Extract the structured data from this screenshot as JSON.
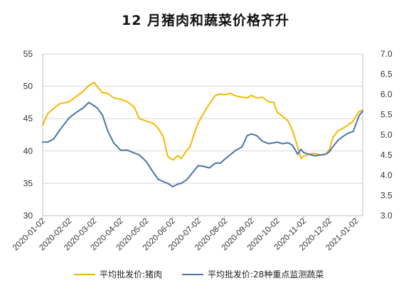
{
  "title": "12 月猪肉和蔬菜价格齐升",
  "chart_data": {
    "type": "line",
    "left_axis": {
      "min": 30,
      "max": 55,
      "ticks": [
        "30",
        "35",
        "40",
        "45",
        "50",
        "55"
      ]
    },
    "right_axis": {
      "min": 3.0,
      "max": 7.0,
      "ticks": [
        "3.0",
        "3.5",
        "4.0",
        "4.5",
        "5.0",
        "5.5",
        "6.0",
        "6.5",
        "7.0"
      ]
    },
    "x_ticks": [
      "2020-01-02",
      "2020-02-02",
      "2020-03-02",
      "2020-04-02",
      "2020-05-02",
      "2020-06-02",
      "2020-07-02",
      "2020-08-02",
      "2020-09-02",
      "2020-10-02",
      "2020-11-02",
      "2020-12-02",
      "2021-01-02"
    ],
    "x_range": [
      "2020-01-02",
      "2021-01-10"
    ],
    "grid": "horizontal",
    "legend_position": "bottom",
    "series": [
      {
        "name": "平均批发价:猪肉",
        "axis": "left",
        "color": "#F5B800",
        "points": [
          [
            "2020-01-02",
            44.0
          ],
          [
            "2020-01-08",
            45.8
          ],
          [
            "2020-01-15",
            46.6
          ],
          [
            "2020-01-22",
            47.3
          ],
          [
            "2020-02-02",
            47.6
          ],
          [
            "2020-02-10",
            48.4
          ],
          [
            "2020-02-18",
            49.2
          ],
          [
            "2020-02-25",
            50.1
          ],
          [
            "2020-03-02",
            50.6
          ],
          [
            "2020-03-06",
            49.9
          ],
          [
            "2020-03-12",
            49.0
          ],
          [
            "2020-03-18",
            48.9
          ],
          [
            "2020-03-25",
            48.2
          ],
          [
            "2020-04-02",
            48.0
          ],
          [
            "2020-04-10",
            47.6
          ],
          [
            "2020-04-18",
            46.8
          ],
          [
            "2020-04-24",
            45.0
          ],
          [
            "2020-05-02",
            44.6
          ],
          [
            "2020-05-10",
            44.3
          ],
          [
            "2020-05-16",
            43.5
          ],
          [
            "2020-05-22",
            42.2
          ],
          [
            "2020-05-27",
            39.2
          ],
          [
            "2020-06-02",
            38.6
          ],
          [
            "2020-06-08",
            39.3
          ],
          [
            "2020-06-12",
            38.8
          ],
          [
            "2020-06-18",
            40.0
          ],
          [
            "2020-06-22",
            40.6
          ],
          [
            "2020-06-28",
            43.0
          ],
          [
            "2020-07-02",
            44.4
          ],
          [
            "2020-07-08",
            45.8
          ],
          [
            "2020-07-15",
            47.3
          ],
          [
            "2020-07-22",
            48.6
          ],
          [
            "2020-07-28",
            48.8
          ],
          [
            "2020-08-02",
            48.7
          ],
          [
            "2020-08-08",
            48.9
          ],
          [
            "2020-08-15",
            48.5
          ],
          [
            "2020-08-22",
            48.3
          ],
          [
            "2020-08-28",
            48.2
          ],
          [
            "2020-09-02",
            48.6
          ],
          [
            "2020-09-08",
            48.2
          ],
          [
            "2020-09-15",
            48.3
          ],
          [
            "2020-09-22",
            47.6
          ],
          [
            "2020-09-28",
            47.5
          ],
          [
            "2020-10-02",
            46.0
          ],
          [
            "2020-10-08",
            45.4
          ],
          [
            "2020-10-15",
            44.6
          ],
          [
            "2020-10-20",
            43.2
          ],
          [
            "2020-10-26",
            40.6
          ],
          [
            "2020-10-30",
            38.8
          ],
          [
            "2020-11-02",
            39.2
          ],
          [
            "2020-11-08",
            39.5
          ],
          [
            "2020-11-15",
            39.6
          ],
          [
            "2020-11-22",
            39.4
          ],
          [
            "2020-11-28",
            39.5
          ],
          [
            "2020-12-02",
            40.2
          ],
          [
            "2020-12-06",
            42.0
          ],
          [
            "2020-12-12",
            43.1
          ],
          [
            "2020-12-18",
            43.5
          ],
          [
            "2020-12-24",
            44.0
          ],
          [
            "2020-12-30",
            44.6
          ],
          [
            "2021-01-02",
            45.4
          ],
          [
            "2021-01-06",
            46.1
          ],
          [
            "2021-01-10",
            46.3
          ]
        ]
      },
      {
        "name": "平均批发价:28种重点监测蔬菜",
        "axis": "right",
        "color": "#4A74A8",
        "points": [
          [
            "2020-01-02",
            4.82
          ],
          [
            "2020-01-08",
            4.82
          ],
          [
            "2020-01-15",
            4.9
          ],
          [
            "2020-01-22",
            5.12
          ],
          [
            "2020-02-02",
            5.42
          ],
          [
            "2020-02-10",
            5.55
          ],
          [
            "2020-02-18",
            5.66
          ],
          [
            "2020-02-25",
            5.8
          ],
          [
            "2020-03-02",
            5.72
          ],
          [
            "2020-03-06",
            5.66
          ],
          [
            "2020-03-12",
            5.48
          ],
          [
            "2020-03-18",
            5.1
          ],
          [
            "2020-03-25",
            4.8
          ],
          [
            "2020-04-02",
            4.62
          ],
          [
            "2020-04-10",
            4.62
          ],
          [
            "2020-04-18",
            4.55
          ],
          [
            "2020-04-24",
            4.5
          ],
          [
            "2020-05-02",
            4.34
          ],
          [
            "2020-05-10",
            4.08
          ],
          [
            "2020-05-16",
            3.9
          ],
          [
            "2020-05-22",
            3.84
          ],
          [
            "2020-05-27",
            3.8
          ],
          [
            "2020-06-02",
            3.72
          ],
          [
            "2020-06-08",
            3.78
          ],
          [
            "2020-06-12",
            3.8
          ],
          [
            "2020-06-18",
            3.88
          ],
          [
            "2020-06-22",
            3.98
          ],
          [
            "2020-06-28",
            4.14
          ],
          [
            "2020-07-02",
            4.24
          ],
          [
            "2020-07-08",
            4.22
          ],
          [
            "2020-07-15",
            4.18
          ],
          [
            "2020-07-22",
            4.3
          ],
          [
            "2020-07-28",
            4.3
          ],
          [
            "2020-08-02",
            4.4
          ],
          [
            "2020-08-08",
            4.5
          ],
          [
            "2020-08-15",
            4.62
          ],
          [
            "2020-08-22",
            4.7
          ],
          [
            "2020-08-28",
            4.98
          ],
          [
            "2020-09-02",
            5.02
          ],
          [
            "2020-09-08",
            4.98
          ],
          [
            "2020-09-15",
            4.84
          ],
          [
            "2020-09-22",
            4.78
          ],
          [
            "2020-09-28",
            4.8
          ],
          [
            "2020-10-02",
            4.82
          ],
          [
            "2020-10-08",
            4.78
          ],
          [
            "2020-10-15",
            4.8
          ],
          [
            "2020-10-20",
            4.74
          ],
          [
            "2020-10-26",
            4.52
          ],
          [
            "2020-10-30",
            4.64
          ],
          [
            "2020-11-02",
            4.56
          ],
          [
            "2020-11-08",
            4.52
          ],
          [
            "2020-11-15",
            4.48
          ],
          [
            "2020-11-22",
            4.5
          ],
          [
            "2020-11-28",
            4.52
          ],
          [
            "2020-12-02",
            4.58
          ],
          [
            "2020-12-06",
            4.7
          ],
          [
            "2020-12-12",
            4.86
          ],
          [
            "2020-12-18",
            4.96
          ],
          [
            "2020-12-24",
            5.04
          ],
          [
            "2020-12-30",
            5.08
          ],
          [
            "2021-01-02",
            5.26
          ],
          [
            "2021-01-06",
            5.48
          ],
          [
            "2021-01-10",
            5.58
          ]
        ]
      }
    ]
  }
}
